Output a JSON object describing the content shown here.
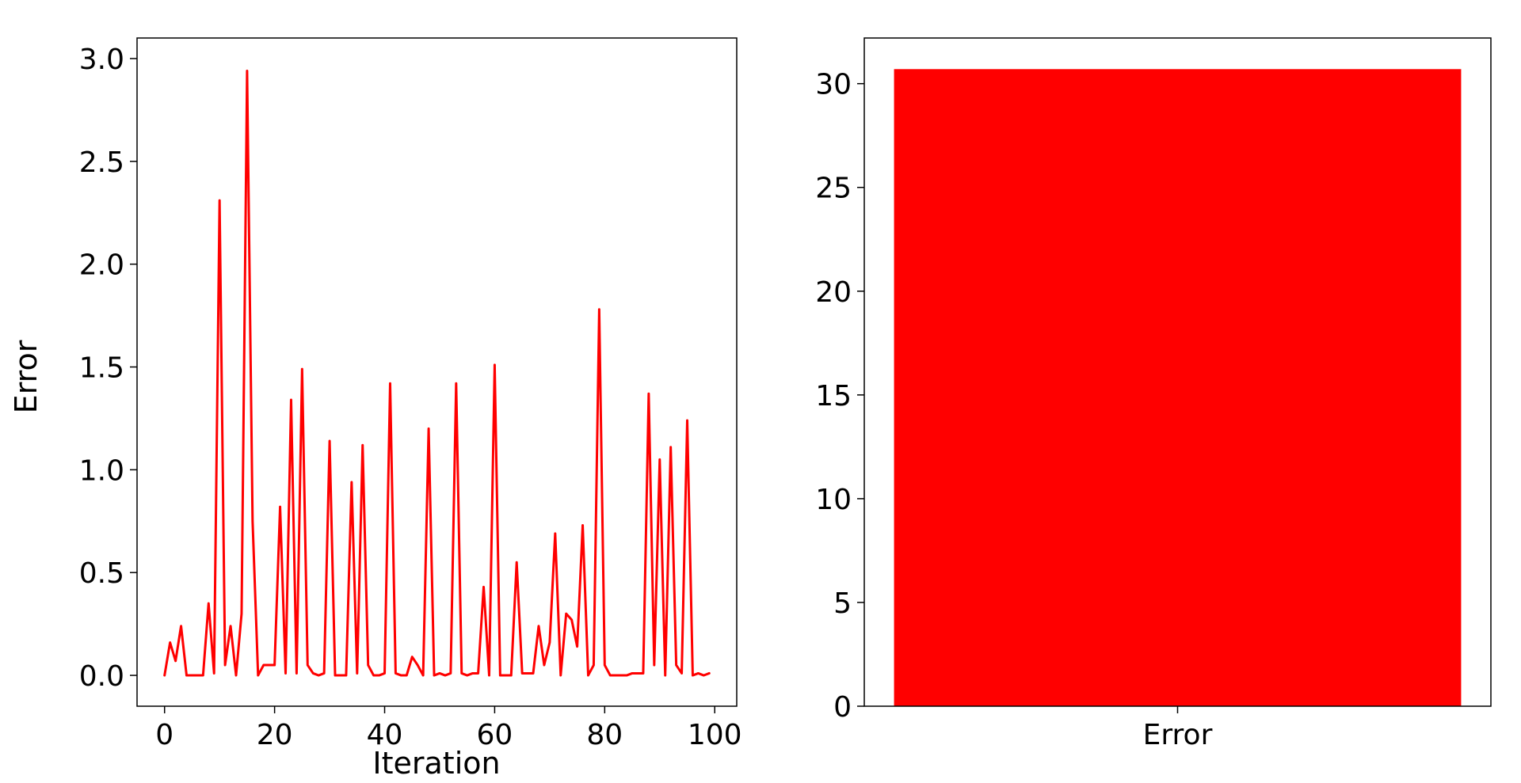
{
  "colors": {
    "series": "#ff0000",
    "axes": "#000000",
    "background": "#ffffff"
  },
  "chart_data": [
    {
      "type": "line",
      "title": "",
      "xlabel": "Iteration",
      "ylabel": "Error",
      "xlim": [
        -5,
        104
      ],
      "ylim": [
        -0.15,
        3.1
      ],
      "xticks": [
        0,
        20,
        40,
        60,
        80,
        100
      ],
      "xtick_labels": [
        "0",
        "20",
        "40",
        "60",
        "80",
        "100"
      ],
      "yticks": [
        0,
        0.5,
        1.0,
        1.5,
        2.0,
        2.5,
        3.0
      ],
      "ytick_labels": [
        "0.0",
        "0.5",
        "1.0",
        "1.5",
        "2.0",
        "2.5",
        "3.0"
      ],
      "grid": false,
      "series": [
        {
          "name": "Error",
          "color": "#ff0000",
          "x": [
            0,
            1,
            2,
            3,
            4,
            5,
            6,
            7,
            8,
            9,
            10,
            11,
            12,
            13,
            14,
            15,
            16,
            17,
            18,
            19,
            20,
            21,
            22,
            23,
            24,
            25,
            26,
            27,
            28,
            29,
            30,
            31,
            32,
            33,
            34,
            35,
            36,
            37,
            38,
            39,
            40,
            41,
            42,
            43,
            44,
            45,
            46,
            47,
            48,
            49,
            50,
            51,
            52,
            53,
            54,
            55,
            56,
            57,
            58,
            59,
            60,
            61,
            62,
            63,
            64,
            65,
            66,
            67,
            68,
            69,
            70,
            71,
            72,
            73,
            74,
            75,
            76,
            77,
            78,
            79,
            80,
            81,
            82,
            83,
            84,
            85,
            86,
            87,
            88,
            89,
            90,
            91,
            92,
            93,
            94,
            95,
            96,
            97,
            98,
            99
          ],
          "values": [
            0.0,
            0.16,
            0.07,
            0.24,
            0.0,
            0.0,
            0.0,
            0.0,
            0.35,
            0.01,
            2.31,
            0.05,
            0.24,
            0.0,
            0.3,
            2.94,
            0.75,
            0.0,
            0.05,
            0.05,
            0.05,
            0.82,
            0.01,
            1.34,
            0.01,
            1.49,
            0.05,
            0.01,
            0.0,
            0.01,
            1.14,
            0.0,
            0.0,
            0.0,
            0.94,
            0.01,
            1.12,
            0.05,
            0.0,
            0.0,
            0.01,
            1.42,
            0.01,
            0.0,
            0.0,
            0.09,
            0.05,
            0.0,
            1.2,
            0.0,
            0.01,
            0.0,
            0.01,
            1.42,
            0.01,
            0.0,
            0.01,
            0.01,
            0.43,
            0.0,
            1.51,
            0.0,
            0.0,
            0.0,
            0.55,
            0.01,
            0.01,
            0.01,
            0.24,
            0.05,
            0.16,
            0.69,
            0.0,
            0.3,
            0.27,
            0.14,
            0.73,
            0.0,
            0.05,
            1.78,
            0.05,
            0.0,
            0.0,
            0.0,
            0.0,
            0.01,
            0.01,
            0.01,
            1.37,
            0.05,
            1.05,
            0.0,
            1.11,
            0.05,
            0.01,
            1.24,
            0.0,
            0.01,
            0.0,
            0.01
          ]
        }
      ]
    },
    {
      "type": "bar",
      "title": "",
      "xlabel": "",
      "ylabel": "",
      "categories": [
        "Error"
      ],
      "values": [
        30.7
      ],
      "color": "#ff0000",
      "ylim": [
        0,
        32.2
      ],
      "yticks": [
        0,
        5,
        10,
        15,
        20,
        25,
        30
      ],
      "ytick_labels": [
        "0",
        "5",
        "10",
        "15",
        "20",
        "25",
        "30"
      ],
      "grid": false
    }
  ]
}
